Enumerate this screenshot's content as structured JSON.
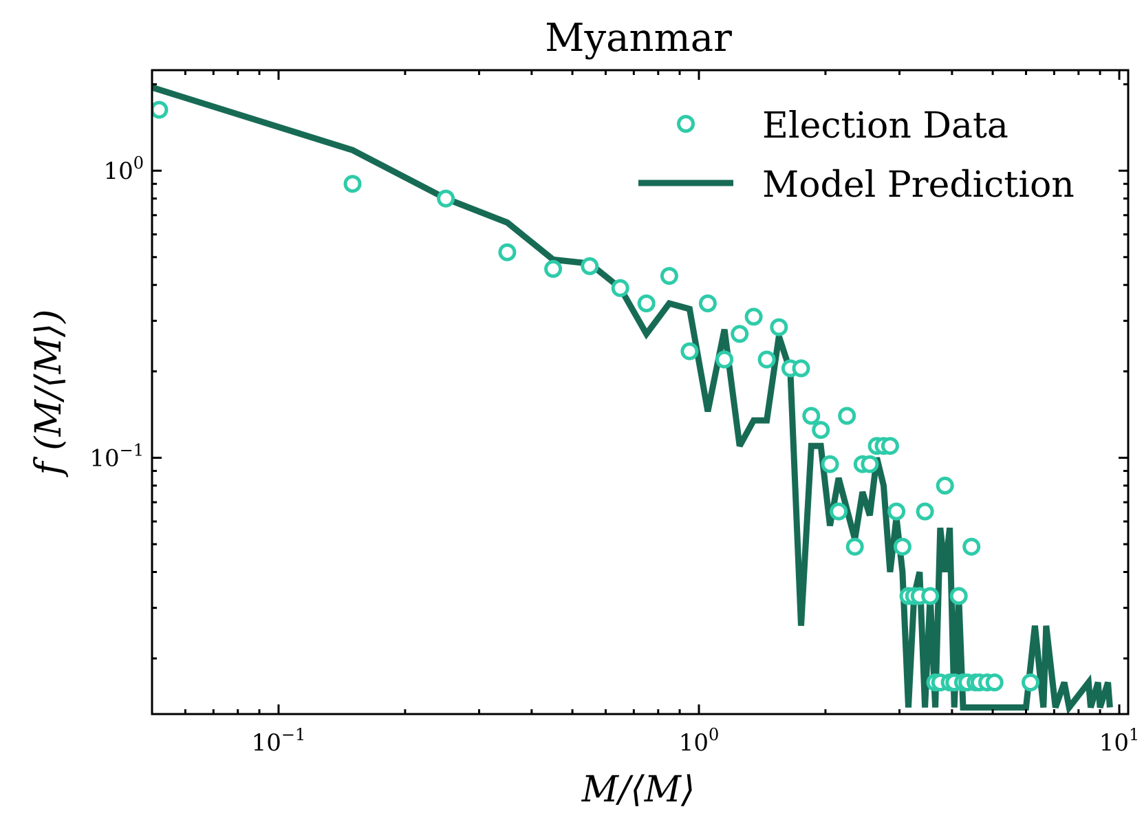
{
  "chart_data": {
    "type": "scatter+line",
    "title": "Myanmar",
    "xlabel": "M/⟨M⟩",
    "ylabel": "f (M/⟨M⟩)",
    "xscale": "log",
    "yscale": "log",
    "xlim": [
      0.05,
      10.5
    ],
    "ylim": [
      0.0128,
      2.24
    ],
    "x_ticks": [
      {
        "value": 0.1,
        "base": "10",
        "exp": "−1"
      },
      {
        "value": 1,
        "base": "10",
        "exp": "0"
      },
      {
        "value": 10,
        "base": "10",
        "exp": "1"
      }
    ],
    "y_ticks": [
      {
        "value": 1,
        "base": "10",
        "exp": "0"
      },
      {
        "value": 0.1,
        "base": "10",
        "exp": "−1"
      }
    ],
    "legend": {
      "position": "top-right"
    },
    "series": [
      {
        "name": "Election Data",
        "kind": "scatter",
        "color": "#2ecba9",
        "points": [
          [
            0.052,
            1.63
          ],
          [
            0.15,
            0.9
          ],
          [
            0.25,
            0.8
          ],
          [
            0.35,
            0.52
          ],
          [
            0.45,
            0.455
          ],
          [
            0.55,
            0.465
          ],
          [
            0.65,
            0.39
          ],
          [
            0.75,
            0.345
          ],
          [
            0.85,
            0.43
          ],
          [
            0.95,
            0.235
          ],
          [
            1.05,
            0.345
          ],
          [
            1.15,
            0.22
          ],
          [
            1.25,
            0.27
          ],
          [
            1.35,
            0.31
          ],
          [
            1.45,
            0.22
          ],
          [
            1.55,
            0.285
          ],
          [
            1.65,
            0.205
          ],
          [
            1.75,
            0.205
          ],
          [
            1.85,
            0.14
          ],
          [
            1.95,
            0.125
          ],
          [
            2.05,
            0.095
          ],
          [
            2.15,
            0.065
          ],
          [
            2.25,
            0.14
          ],
          [
            2.35,
            0.049
          ],
          [
            2.45,
            0.095
          ],
          [
            2.55,
            0.095
          ],
          [
            2.65,
            0.11
          ],
          [
            2.75,
            0.11
          ],
          [
            2.85,
            0.11
          ],
          [
            2.95,
            0.065
          ],
          [
            3.05,
            0.049
          ],
          [
            3.15,
            0.033
          ],
          [
            3.25,
            0.033
          ],
          [
            3.35,
            0.033
          ],
          [
            3.45,
            0.065
          ],
          [
            3.55,
            0.033
          ],
          [
            3.65,
            0.0165
          ],
          [
            3.75,
            0.0165
          ],
          [
            3.85,
            0.08
          ],
          [
            3.95,
            0.0165
          ],
          [
            4.05,
            0.0165
          ],
          [
            4.15,
            0.033
          ],
          [
            4.25,
            0.0165
          ],
          [
            4.35,
            0.0165
          ],
          [
            4.45,
            0.049
          ],
          [
            4.55,
            0.0165
          ],
          [
            4.65,
            0.0165
          ],
          [
            4.85,
            0.0165
          ],
          [
            5.05,
            0.0165
          ],
          [
            6.15,
            0.0165
          ]
        ]
      },
      {
        "name": "Model Prediction",
        "kind": "line",
        "color": "#176b55",
        "points": [
          [
            0.05,
            1.95
          ],
          [
            0.15,
            1.18
          ],
          [
            0.25,
            0.8
          ],
          [
            0.35,
            0.66
          ],
          [
            0.45,
            0.49
          ],
          [
            0.55,
            0.475
          ],
          [
            0.65,
            0.39
          ],
          [
            0.75,
            0.27
          ],
          [
            0.85,
            0.345
          ],
          [
            0.95,
            0.33
          ],
          [
            1.05,
            0.145
          ],
          [
            1.15,
            0.28
          ],
          [
            1.25,
            0.11
          ],
          [
            1.35,
            0.135
          ],
          [
            1.45,
            0.135
          ],
          [
            1.55,
            0.265
          ],
          [
            1.65,
            0.2
          ],
          [
            1.75,
            0.026
          ],
          [
            1.85,
            0.11
          ],
          [
            1.95,
            0.11
          ],
          [
            2.05,
            0.058
          ],
          [
            2.15,
            0.085
          ],
          [
            2.25,
            0.066
          ],
          [
            2.35,
            0.052
          ],
          [
            2.45,
            0.076
          ],
          [
            2.55,
            0.063
          ],
          [
            2.65,
            0.1
          ],
          [
            2.75,
            0.08
          ],
          [
            2.85,
            0.04
          ],
          [
            2.95,
            0.062
          ],
          [
            3.05,
            0.04
          ],
          [
            3.15,
            0.0135
          ],
          [
            3.25,
            0.033
          ],
          [
            3.35,
            0.04
          ],
          [
            3.45,
            0.0135
          ],
          [
            3.55,
            0.033
          ],
          [
            3.65,
            0.0135
          ],
          [
            3.75,
            0.057
          ],
          [
            3.85,
            0.04
          ],
          [
            3.95,
            0.057
          ],
          [
            4.05,
            0.0135
          ],
          [
            4.15,
            0.033
          ],
          [
            4.25,
            0.0135
          ],
          [
            4.35,
            0.0135
          ],
          [
            4.45,
            0.0135
          ],
          [
            4.55,
            0.0135
          ],
          [
            4.65,
            0.0135
          ],
          [
            4.85,
            0.0135
          ],
          [
            5.05,
            0.0135
          ],
          [
            5.25,
            0.0135
          ],
          [
            5.55,
            0.0135
          ],
          [
            5.85,
            0.0135
          ],
          [
            6.0,
            0.0135
          ],
          [
            6.3,
            0.026
          ],
          [
            6.6,
            0.0135
          ],
          [
            6.7,
            0.026
          ],
          [
            7.05,
            0.0135
          ],
          [
            7.4,
            0.0165
          ],
          [
            7.6,
            0.0135
          ],
          [
            8.45,
            0.0165
          ],
          [
            8.55,
            0.0135
          ],
          [
            8.9,
            0.0165
          ],
          [
            9.0,
            0.0135
          ],
          [
            9.4,
            0.0165
          ],
          [
            9.5,
            0.0135
          ]
        ]
      }
    ]
  }
}
